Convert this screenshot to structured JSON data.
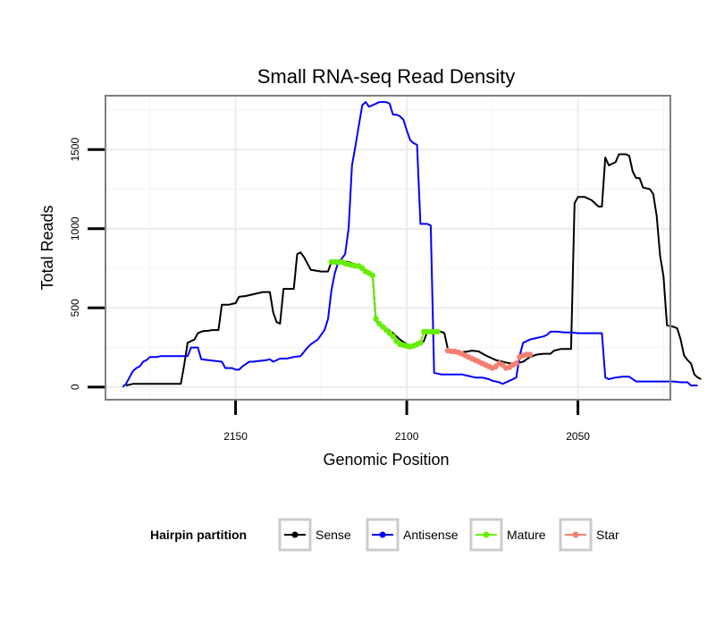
{
  "chart_data": {
    "type": "line",
    "title": "Small RNA-seq Read Density",
    "xlabel": "Genomic Position",
    "ylabel": "Total Reads",
    "xlim": [
      2188,
      2023
    ],
    "ylim": [
      -80,
      1840
    ],
    "x_reversed": true,
    "x_ticks": [
      2150,
      2100,
      2050
    ],
    "y_ticks": [
      0,
      500,
      1000,
      1500
    ],
    "grid": true,
    "legend_position": "bottom",
    "legend": {
      "title": "Hairpin partition",
      "entries": [
        "Sense",
        "Antisense",
        "Mature",
        "Star"
      ]
    },
    "colors": {
      "Sense": "#000000",
      "Antisense": "#0000ff",
      "Mature": "#66ee00",
      "Star": "#f58070"
    },
    "series": [
      {
        "name": "Sense",
        "points": [
          [
            2182,
            10
          ],
          [
            2180,
            20
          ],
          [
            2177,
            20
          ],
          [
            2173,
            20
          ],
          [
            2169,
            20
          ],
          [
            2166,
            20
          ],
          [
            2165,
            140
          ],
          [
            2164,
            280
          ],
          [
            2162,
            300
          ],
          [
            2161,
            340
          ],
          [
            2160,
            350
          ],
          [
            2159,
            355
          ],
          [
            2158,
            355
          ],
          [
            2157,
            360
          ],
          [
            2155,
            360
          ],
          [
            2154,
            520
          ],
          [
            2152,
            520
          ],
          [
            2151,
            525
          ],
          [
            2150,
            530
          ],
          [
            2149,
            570
          ],
          [
            2147,
            575
          ],
          [
            2146,
            580
          ],
          [
            2144,
            590
          ],
          [
            2142,
            600
          ],
          [
            2140,
            600
          ],
          [
            2139,
            470
          ],
          [
            2138,
            410
          ],
          [
            2137,
            400
          ],
          [
            2136,
            620
          ],
          [
            2133,
            620
          ],
          [
            2132,
            840
          ],
          [
            2131,
            850
          ],
          [
            2130,
            820
          ],
          [
            2128,
            740
          ],
          [
            2125,
            730
          ],
          [
            2123,
            730
          ],
          [
            2122,
            790
          ],
          [
            2121,
            790
          ],
          [
            2120,
            795
          ],
          [
            2117,
            790
          ],
          [
            2115,
            775
          ],
          [
            2112,
            740
          ],
          [
            2111,
            720
          ],
          [
            2110,
            710
          ],
          [
            2109,
            420
          ],
          [
            2108,
            400
          ],
          [
            2106,
            370
          ],
          [
            2104,
            340
          ],
          [
            2102,
            300
          ],
          [
            2100,
            270
          ],
          [
            2098,
            260
          ],
          [
            2096,
            270
          ],
          [
            2095,
            290
          ],
          [
            2094,
            350
          ],
          [
            2092,
            350
          ],
          [
            2090,
            350
          ],
          [
            2089,
            340
          ],
          [
            2088,
            240
          ],
          [
            2086,
            225
          ],
          [
            2084,
            220
          ],
          [
            2082,
            225
          ],
          [
            2081,
            230
          ],
          [
            2079,
            225
          ],
          [
            2077,
            200
          ],
          [
            2074,
            170
          ],
          [
            2072,
            160
          ],
          [
            2070,
            150
          ],
          [
            2068,
            150
          ],
          [
            2066,
            160
          ],
          [
            2064,
            190
          ],
          [
            2062,
            205
          ],
          [
            2060,
            210
          ],
          [
            2058,
            210
          ],
          [
            2057,
            230
          ],
          [
            2055,
            240
          ],
          [
            2052,
            240
          ],
          [
            2051,
            1160
          ],
          [
            2050,
            1200
          ],
          [
            2048,
            1200
          ],
          [
            2046,
            1180
          ],
          [
            2045,
            1160
          ],
          [
            2044,
            1140
          ],
          [
            2043,
            1140
          ],
          [
            2042,
            1450
          ],
          [
            2041,
            1400
          ],
          [
            2039,
            1420
          ],
          [
            2038,
            1470
          ],
          [
            2036,
            1470
          ],
          [
            2035,
            1460
          ],
          [
            2034,
            1360
          ],
          [
            2033,
            1320
          ],
          [
            2032,
            1320
          ],
          [
            2031,
            1260
          ],
          [
            2029,
            1250
          ],
          [
            2028,
            1220
          ],
          [
            2027,
            1080
          ],
          [
            2026,
            830
          ],
          [
            2025,
            700
          ],
          [
            2024,
            390
          ],
          [
            2022,
            380
          ],
          [
            2021,
            370
          ],
          [
            2020,
            300
          ],
          [
            2019,
            200
          ],
          [
            2018,
            170
          ],
          [
            2017,
            150
          ],
          [
            2016,
            80
          ],
          [
            2015,
            60
          ],
          [
            2014,
            50
          ]
        ]
      },
      {
        "name": "Antisense",
        "points": [
          [
            2183,
            0
          ],
          [
            2182,
            20
          ],
          [
            2181,
            60
          ],
          [
            2180,
            100
          ],
          [
            2179,
            120
          ],
          [
            2178,
            130
          ],
          [
            2177,
            160
          ],
          [
            2176,
            170
          ],
          [
            2175,
            190
          ],
          [
            2173,
            190
          ],
          [
            2172,
            195
          ],
          [
            2170,
            195
          ],
          [
            2167,
            195
          ],
          [
            2164,
            195
          ],
          [
            2163,
            250
          ],
          [
            2161,
            250
          ],
          [
            2160,
            175
          ],
          [
            2158,
            170
          ],
          [
            2156,
            165
          ],
          [
            2154,
            160
          ],
          [
            2153,
            120
          ],
          [
            2151,
            120
          ],
          [
            2150,
            110
          ],
          [
            2149,
            110
          ],
          [
            2148,
            130
          ],
          [
            2146,
            160
          ],
          [
            2145,
            160
          ],
          [
            2143,
            165
          ],
          [
            2141,
            170
          ],
          [
            2140,
            175
          ],
          [
            2139,
            160
          ],
          [
            2137,
            180
          ],
          [
            2135,
            180
          ],
          [
            2133,
            190
          ],
          [
            2131,
            195
          ],
          [
            2129,
            250
          ],
          [
            2128,
            270
          ],
          [
            2126,
            300
          ],
          [
            2124,
            360
          ],
          [
            2123,
            430
          ],
          [
            2122,
            610
          ],
          [
            2121,
            720
          ],
          [
            2120,
            790
          ],
          [
            2119,
            810
          ],
          [
            2118,
            840
          ],
          [
            2117,
            1000
          ],
          [
            2116,
            1400
          ],
          [
            2115,
            1520
          ],
          [
            2114,
            1650
          ],
          [
            2113,
            1780
          ],
          [
            2112,
            1800
          ],
          [
            2111,
            1770
          ],
          [
            2110,
            1780
          ],
          [
            2109,
            1790
          ],
          [
            2108,
            1800
          ],
          [
            2106,
            1800
          ],
          [
            2105,
            1790
          ],
          [
            2104,
            1720
          ],
          [
            2103,
            1720
          ],
          [
            2102,
            1710
          ],
          [
            2101,
            1690
          ],
          [
            2100,
            1620
          ],
          [
            2099,
            1560
          ],
          [
            2098,
            1540
          ],
          [
            2097,
            1530
          ],
          [
            2096,
            1030
          ],
          [
            2094,
            1030
          ],
          [
            2093,
            1020
          ],
          [
            2092,
            90
          ],
          [
            2090,
            80
          ],
          [
            2088,
            80
          ],
          [
            2086,
            80
          ],
          [
            2084,
            80
          ],
          [
            2082,
            70
          ],
          [
            2080,
            60
          ],
          [
            2078,
            60
          ],
          [
            2076,
            50
          ],
          [
            2075,
            40
          ],
          [
            2073,
            30
          ],
          [
            2072,
            20
          ],
          [
            2070,
            40
          ],
          [
            2068,
            60
          ],
          [
            2067,
            200
          ],
          [
            2066,
            280
          ],
          [
            2064,
            300
          ],
          [
            2062,
            310
          ],
          [
            2060,
            320
          ],
          [
            2059,
            330
          ],
          [
            2058,
            350
          ],
          [
            2056,
            350
          ],
          [
            2054,
            345
          ],
          [
            2052,
            345
          ],
          [
            2050,
            340
          ],
          [
            2048,
            340
          ],
          [
            2046,
            340
          ],
          [
            2044,
            340
          ],
          [
            2043,
            340
          ],
          [
            2042,
            60
          ],
          [
            2041,
            50
          ],
          [
            2039,
            60
          ],
          [
            2037,
            65
          ],
          [
            2035,
            65
          ],
          [
            2033,
            35
          ],
          [
            2030,
            35
          ],
          [
            2027,
            35
          ],
          [
            2024,
            35
          ],
          [
            2022,
            35
          ],
          [
            2020,
            30
          ],
          [
            2019,
            30
          ],
          [
            2018,
            30
          ],
          [
            2017,
            10
          ],
          [
            2015,
            10
          ]
        ]
      },
      {
        "name": "Mature",
        "points": [
          [
            2122,
            790
          ],
          [
            2121,
            790
          ],
          [
            2120,
            790
          ],
          [
            2119,
            790
          ],
          [
            2118,
            780
          ],
          [
            2117,
            775
          ],
          [
            2116,
            770
          ],
          [
            2115,
            765
          ],
          [
            2114,
            765
          ],
          [
            2113,
            750
          ],
          [
            2112,
            730
          ],
          [
            2111,
            720
          ],
          [
            2110,
            705
          ],
          [
            2109,
            430
          ],
          [
            2108,
            400
          ],
          [
            2107,
            380
          ],
          [
            2106,
            360
          ],
          [
            2105,
            340
          ],
          [
            2104,
            320
          ],
          [
            2103,
            290
          ],
          [
            2102,
            270
          ],
          [
            2101,
            265
          ],
          [
            2100,
            260
          ],
          [
            2099,
            255
          ],
          [
            2098,
            260
          ],
          [
            2097,
            270
          ],
          [
            2096,
            280
          ],
          [
            2095,
            350
          ],
          [
            2094,
            350
          ],
          [
            2093,
            350
          ],
          [
            2092,
            350
          ],
          [
            2091,
            350
          ]
        ]
      },
      {
        "name": "Star",
        "points": [
          [
            2088,
            230
          ],
          [
            2087,
            225
          ],
          [
            2086,
            225
          ],
          [
            2085,
            220
          ],
          [
            2084,
            210
          ],
          [
            2083,
            200
          ],
          [
            2082,
            190
          ],
          [
            2081,
            180
          ],
          [
            2080,
            170
          ],
          [
            2079,
            160
          ],
          [
            2078,
            150
          ],
          [
            2077,
            140
          ],
          [
            2076,
            130
          ],
          [
            2075,
            120
          ],
          [
            2074,
            130
          ],
          [
            2073,
            150
          ],
          [
            2072,
            140
          ],
          [
            2071,
            120
          ],
          [
            2070,
            125
          ],
          [
            2069,
            140
          ],
          [
            2068,
            150
          ],
          [
            2067,
            190
          ],
          [
            2066,
            200
          ],
          [
            2065,
            205
          ],
          [
            2064,
            205
          ]
        ]
      }
    ]
  }
}
